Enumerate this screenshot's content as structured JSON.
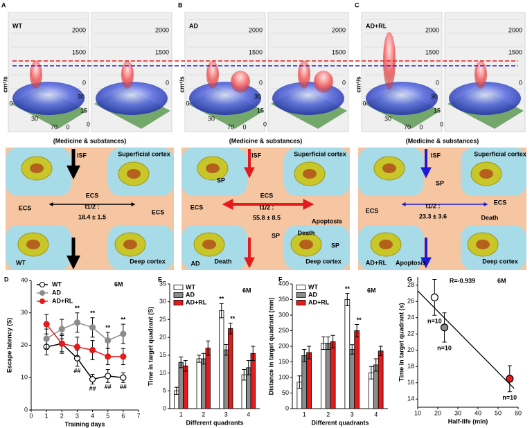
{
  "panels": [
    {
      "letter": "A",
      "title": "WT",
      "unit": "cm²/s",
      "z_ticks": [
        "2000",
        "1500",
        "0"
      ],
      "side_ticks": [
        "30",
        "15",
        "0"
      ],
      "bottom_ticks": [
        "0",
        "30",
        "70",
        "0"
      ]
    },
    {
      "letter": "B",
      "title": "AD",
      "unit": "cm²/s",
      "z_ticks": [
        "2000",
        "1500",
        "0"
      ],
      "side_ticks": [
        "30",
        "15",
        "0"
      ],
      "bottom_ticks": [
        "0",
        "30",
        "70",
        "0"
      ]
    },
    {
      "letter": "C",
      "title": "AD+RL",
      "unit": "cm²/s",
      "z_ticks": [
        "2000",
        "1500",
        "0"
      ],
      "side_ticks": [
        "30",
        "15",
        "0"
      ],
      "bottom_ticks": [
        "0",
        "30",
        "70",
        "0"
      ]
    }
  ],
  "diagrams": [
    {
      "header": "(Medicine & substances)",
      "texts": [
        "ISF",
        "Superficial cortex",
        "ECS",
        "ECS",
        "ECS",
        "t1/2 :",
        "18.4 ± 1.5",
        "WT",
        "Deep cortex"
      ]
    },
    {
      "header": "(Medicine & substances)",
      "texts": [
        "ISF",
        "Superficial cortex",
        "SP",
        "ECS",
        "ECS",
        "t1/2 :",
        "55.8 ± 8.5",
        "SP",
        "SP",
        "Apoptosis",
        "Death",
        "Death",
        "AD",
        "Deep cortex"
      ]
    },
    {
      "header": "(Medicine & substances)",
      "texts": [
        "ISF",
        "Superficial cortex",
        "SP",
        "ECS",
        "ECS",
        "t1/2 :",
        "23.3 ± 3.6",
        "Death",
        "Apoptosis",
        "AD+RL",
        "Deep cortex"
      ]
    }
  ],
  "chart_data": [
    {
      "panel": "D",
      "type": "line",
      "note": "6M",
      "x": [
        1,
        2,
        3,
        4,
        5,
        6
      ],
      "xlim": [
        0,
        7
      ],
      "xticks": [
        0,
        1,
        2,
        3,
        4,
        5,
        6,
        7
      ],
      "ylim": [
        0,
        40
      ],
      "yticks": [
        0,
        10,
        20,
        30,
        40
      ],
      "xlabel": "Training days",
      "ylabel": "Escape latency (S)",
      "legend": "top-left",
      "series": [
        {
          "name": "WT",
          "color": "#ffffff",
          "values": [
            19.5,
            20.5,
            16,
            9.5,
            10.5,
            10
          ],
          "errors": [
            2.5,
            2.5,
            2.5,
            1.5,
            2,
            1.5
          ]
        },
        {
          "name": "AD",
          "color": "#8c8c8c",
          "values": [
            22,
            25,
            27,
            25.5,
            21.5,
            23.5
          ],
          "errors": [
            3,
            3,
            3,
            3,
            2.5,
            3
          ]
        },
        {
          "name": "AD+RL",
          "color": "#e41a1c",
          "values": [
            26.5,
            20.5,
            19.5,
            18.5,
            16.5,
            16.5
          ],
          "errors": [
            3,
            3,
            3,
            3,
            2.5,
            2.5
          ]
        }
      ],
      "annotations": [
        {
          "text": "**",
          "x": 3,
          "series": "AD",
          "position": "above"
        },
        {
          "text": "**",
          "x": 4,
          "series": "AD",
          "position": "above"
        },
        {
          "text": "**",
          "x": 5,
          "series": "AD",
          "position": "above"
        },
        {
          "text": "**",
          "x": 6,
          "series": "AD",
          "position": "above"
        },
        {
          "text": "##",
          "x": 3,
          "series": "WT",
          "position": "below"
        },
        {
          "text": "##",
          "x": 4,
          "series": "WT",
          "position": "below"
        },
        {
          "text": "##",
          "x": 5,
          "series": "WT",
          "position": "below"
        },
        {
          "text": "##",
          "x": 6,
          "series": "WT",
          "position": "below"
        }
      ]
    },
    {
      "panel": "E",
      "type": "bar",
      "note": "6M",
      "categories": [
        "1",
        "2",
        "3",
        "4"
      ],
      "ylim": [
        0,
        35
      ],
      "yticks": [
        0,
        5,
        10,
        15,
        20,
        25,
        30,
        35
      ],
      "xlabel": "Different quadrants",
      "ylabel": "Time in target quadrant (S)",
      "legend": "top-left",
      "series": [
        {
          "name": "WT",
          "color": "#ffffff",
          "values": [
            5,
            14,
            27.5,
            9.5
          ],
          "errors": [
            1,
            1,
            2,
            1.5
          ]
        },
        {
          "name": "AD",
          "color": "#8c8c8c",
          "values": [
            13,
            14,
            16.5,
            11.5
          ],
          "errors": [
            1.5,
            1.5,
            1.5,
            2
          ]
        },
        {
          "name": "AD+RL",
          "color": "#e41a1c",
          "values": [
            12,
            17,
            22.5,
            15.5
          ],
          "errors": [
            1.5,
            2,
            1.5,
            2
          ]
        }
      ],
      "annotations": [
        {
          "text": "**",
          "category": "3",
          "series": "WT",
          "position": "above"
        },
        {
          "text": "**",
          "category": "3",
          "series": "AD+RL",
          "position": "above"
        }
      ]
    },
    {
      "panel": "F",
      "type": "bar",
      "note": "6M",
      "categories": [
        "1",
        "2",
        "3",
        "4"
      ],
      "ylim": [
        0,
        400
      ],
      "yticks": [
        0,
        50,
        100,
        150,
        200,
        250,
        300,
        350,
        400
      ],
      "xlabel": "Different quadrants",
      "ylabel": "Distance in target quadrant (mm)",
      "legend": "top-left",
      "series": [
        {
          "name": "WT",
          "color": "#ffffff",
          "values": [
            85,
            210,
            350,
            115
          ],
          "errors": [
            20,
            20,
            20,
            20
          ]
        },
        {
          "name": "AD",
          "color": "#8c8c8c",
          "values": [
            170,
            210,
            190,
            140
          ],
          "errors": [
            20,
            20,
            15,
            20
          ]
        },
        {
          "name": "AD+RL",
          "color": "#e41a1c",
          "values": [
            180,
            215,
            250,
            185
          ],
          "errors": [
            20,
            20,
            20,
            15
          ]
        }
      ],
      "annotations": [
        {
          "text": "**",
          "category": "3",
          "series": "WT",
          "position": "above"
        },
        {
          "text": "**",
          "category": "3",
          "series": "AD+RL",
          "position": "above"
        }
      ]
    },
    {
      "panel": "G",
      "type": "scatter",
      "note": "6M",
      "annotation": "R=-0.939",
      "xlim": [
        10,
        60
      ],
      "xticks": [
        10,
        20,
        30,
        40,
        50,
        60
      ],
      "ylim": [
        13,
        29
      ],
      "yticks": [
        14,
        16,
        18,
        20,
        22,
        24,
        26,
        28
      ],
      "xlabel": "Half-life (min)",
      "ylabel": "Time in target quadrant (s)",
      "points": {
        "x": [
          18.4,
          23.3,
          55.8
        ],
        "y": [
          26.5,
          22.8,
          16.5
        ],
        "errors": [
          2.2,
          1.8,
          1.6
        ],
        "colors": [
          "#ffffff",
          "#8c8c8c",
          "#e41a1c"
        ],
        "labels": [
          "n=10",
          "n=10",
          "n=10"
        ]
      },
      "fit": {
        "x": [
          10,
          58
        ],
        "y": [
          27.3,
          15.3
        ]
      }
    }
  ]
}
